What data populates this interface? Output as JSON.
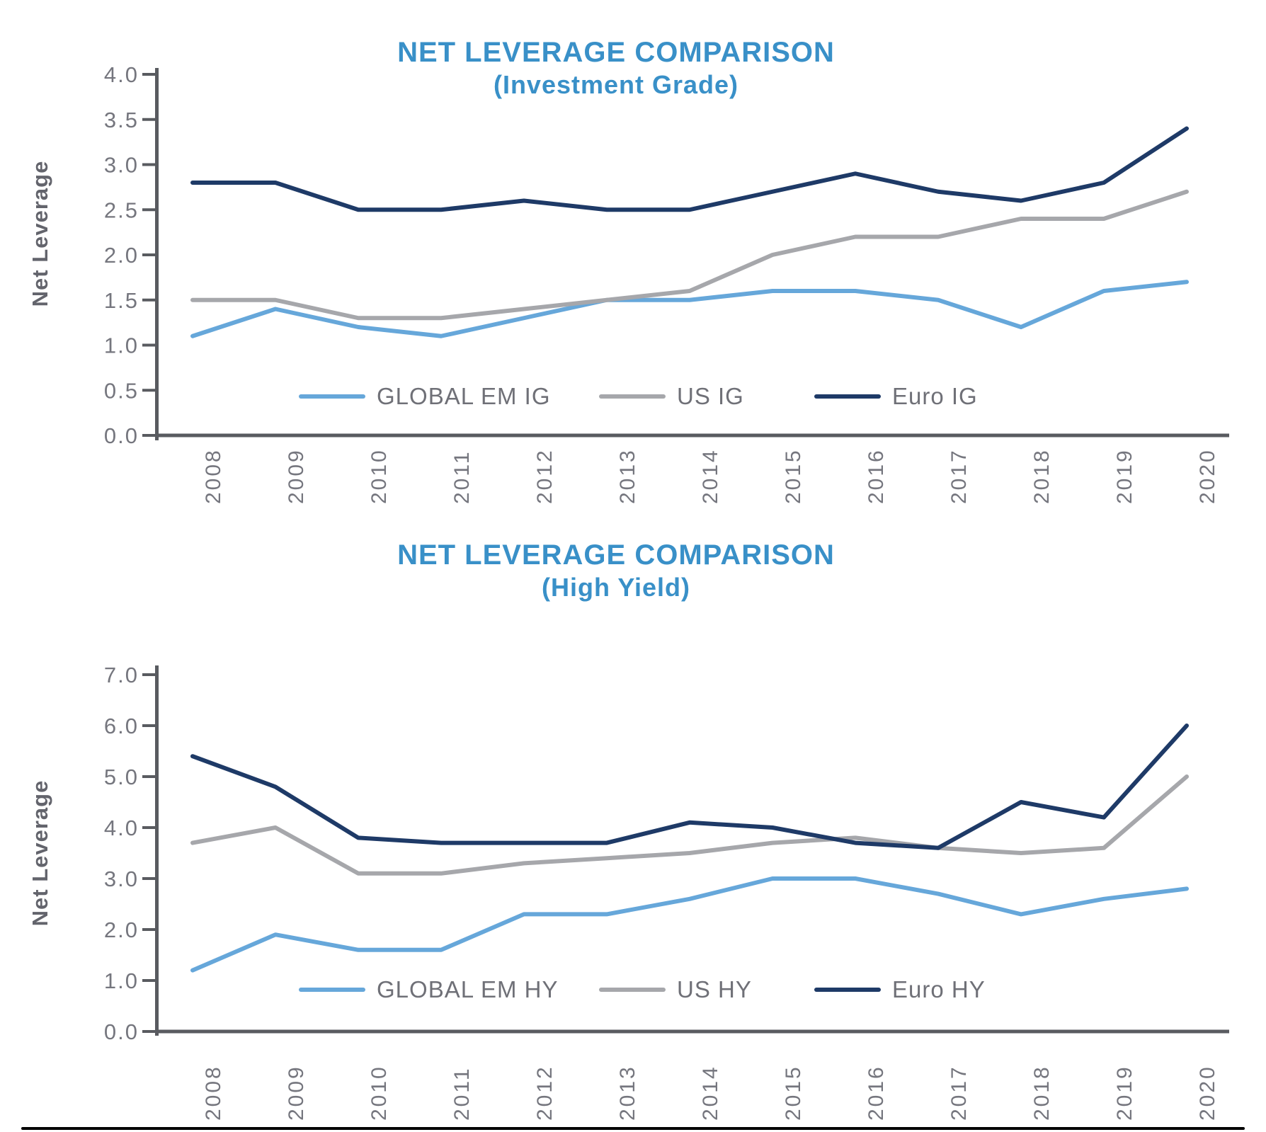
{
  "colors": {
    "title_blue": "#3990C8",
    "axis_gray": "#595B60",
    "tick_label_gray": "#75767E",
    "legend_text_gray": "#6F7077",
    "ylabel_gray": "#63646C",
    "em_blue": "#66A7DA",
    "us_gray": "#A6A7AB",
    "euro_navy": "#1E3A67",
    "bottom_rule_black": "#000000"
  },
  "chart_data": [
    {
      "type": "line",
      "title": "NET LEVERAGE COMPARISON",
      "subtitle": "(Investment Grade)",
      "ylabel": "Net Leverage",
      "ylim": [
        0.0,
        4.0
      ],
      "ytick_step": 0.5,
      "ytick_labels": [
        "4.0",
        "3.5",
        "3.0",
        "2.5",
        "2.0",
        "1.5",
        "1.0",
        "0.5",
        "0.0"
      ],
      "categories": [
        "2008",
        "2009",
        "2010",
        "2011",
        "2012",
        "2013",
        "2014",
        "2015",
        "2016",
        "2017",
        "2018",
        "2019",
        "2020"
      ],
      "grid": false,
      "legend_position": "inside-bottom",
      "x_label_rotation": -90,
      "series": [
        {
          "name": "GLOBAL EM IG",
          "color": "#66A7DA",
          "values": [
            1.1,
            1.4,
            1.2,
            1.1,
            1.3,
            1.5,
            1.5,
            1.6,
            1.6,
            1.5,
            1.2,
            1.6,
            1.7
          ]
        },
        {
          "name": "US IG",
          "color": "#A6A7AB",
          "values": [
            1.5,
            1.5,
            1.3,
            1.3,
            1.4,
            1.5,
            1.6,
            2.0,
            2.2,
            2.2,
            2.4,
            2.4,
            2.7
          ]
        },
        {
          "name": "Euro IG",
          "color": "#1E3A67",
          "values": [
            2.8,
            2.8,
            2.5,
            2.5,
            2.6,
            2.5,
            2.5,
            2.7,
            2.9,
            2.7,
            2.6,
            2.8,
            3.4
          ]
        }
      ]
    },
    {
      "type": "line",
      "title": "NET LEVERAGE COMPARISON",
      "subtitle": "(High Yield)",
      "ylabel": "Net Leverage",
      "ylim": [
        0.0,
        7.0
      ],
      "ytick_step": 1.0,
      "ytick_labels": [
        "7.0",
        "6.0",
        "5.0",
        "4.0",
        "3.0",
        "2.0",
        "1.0",
        "0.0"
      ],
      "categories": [
        "2008",
        "2009",
        "2010",
        "2011",
        "2012",
        "2013",
        "2014",
        "2015",
        "2016",
        "2017",
        "2018",
        "2019",
        "2020"
      ],
      "grid": false,
      "legend_position": "inside-bottom",
      "x_label_rotation": -90,
      "series": [
        {
          "name": "GLOBAL EM HY",
          "color": "#66A7DA",
          "values": [
            1.2,
            1.9,
            1.6,
            1.6,
            2.3,
            2.3,
            2.6,
            3.0,
            3.0,
            2.7,
            2.3,
            2.6,
            2.8
          ]
        },
        {
          "name": "US HY",
          "color": "#A6A7AB",
          "values": [
            3.7,
            4.0,
            3.1,
            3.1,
            3.3,
            3.4,
            3.5,
            3.7,
            3.8,
            3.6,
            3.5,
            3.6,
            5.0
          ]
        },
        {
          "name": "Euro HY",
          "color": "#1E3A67",
          "values": [
            5.4,
            4.8,
            3.8,
            3.7,
            3.7,
            3.7,
            4.1,
            4.0,
            3.7,
            3.6,
            4.5,
            4.2,
            6.0
          ]
        }
      ]
    }
  ]
}
